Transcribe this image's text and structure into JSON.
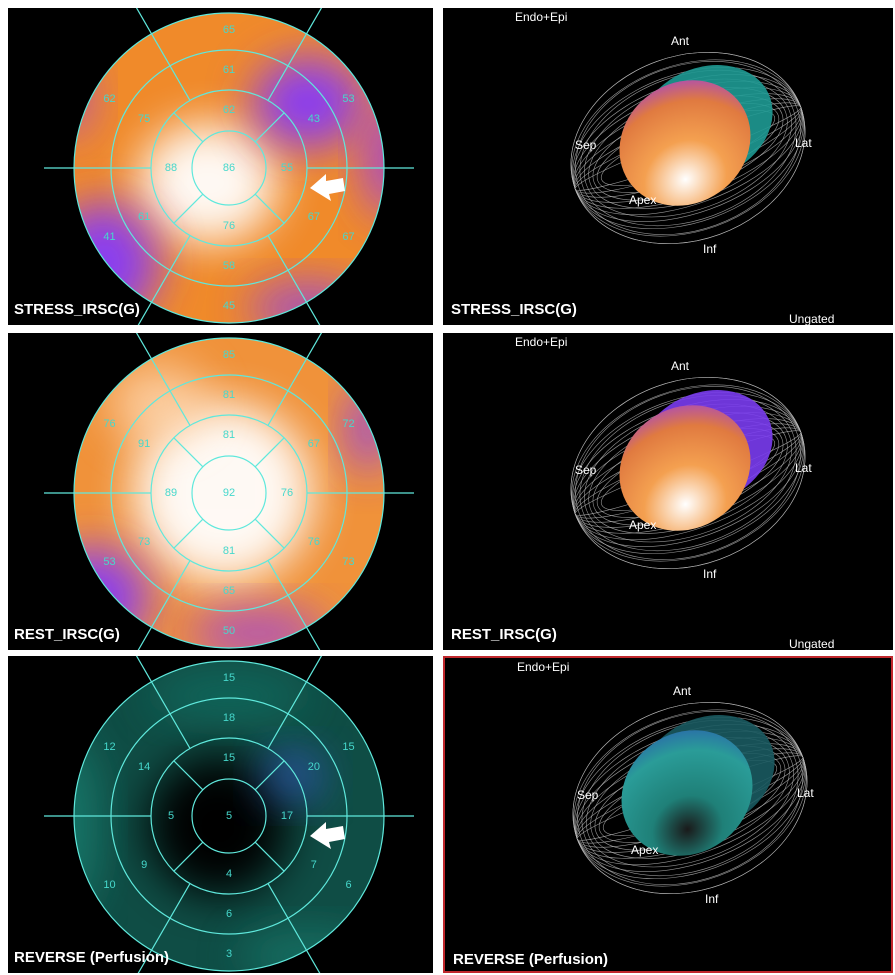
{
  "panels": [
    {
      "polar_map": {
        "label": "STRESS_IRSC(G)",
        "apex": 86,
        "apical": [
          62,
          55,
          76,
          88
        ],
        "mid": [
          61,
          43,
          67,
          58,
          61,
          75
        ],
        "basal": [
          65,
          53,
          67,
          45,
          41,
          62
        ]
      },
      "render": {
        "title": "Endo+Epi",
        "ant": "Ant",
        "sep": "Sep",
        "lat": "Lat",
        "inf": "Inf",
        "apex": "Apex",
        "label": "STRESS_IRSC(G)",
        "status": "Ungated"
      }
    },
    {
      "polar_map": {
        "label": "REST_IRSC(G)",
        "apex": 92,
        "apical": [
          81,
          76,
          81,
          89
        ],
        "mid": [
          81,
          67,
          76,
          65,
          73,
          91
        ],
        "basal": [
          85,
          72,
          73,
          50,
          53,
          76
        ]
      },
      "render": {
        "title": "Endo+Epi",
        "ant": "Ant",
        "sep": "Sep",
        "lat": "Lat",
        "inf": "Inf",
        "apex": "Apex",
        "label": "REST_IRSC(G)",
        "status": "Ungated"
      }
    },
    {
      "polar_map": {
        "label": "REVERSE (Perfusion)",
        "apex": 5,
        "apical": [
          15,
          17,
          4,
          5
        ],
        "mid": [
          18,
          20,
          7,
          6,
          9,
          14
        ],
        "basal": [
          15,
          15,
          6,
          3,
          10,
          12
        ]
      },
      "render": {
        "title": "Endo+Epi",
        "ant": "Ant",
        "sep": "Sep",
        "lat": "Lat",
        "inf": "Inf",
        "apex": "Apex",
        "label": "REVERSE (Perfusion)"
      }
    }
  ]
}
